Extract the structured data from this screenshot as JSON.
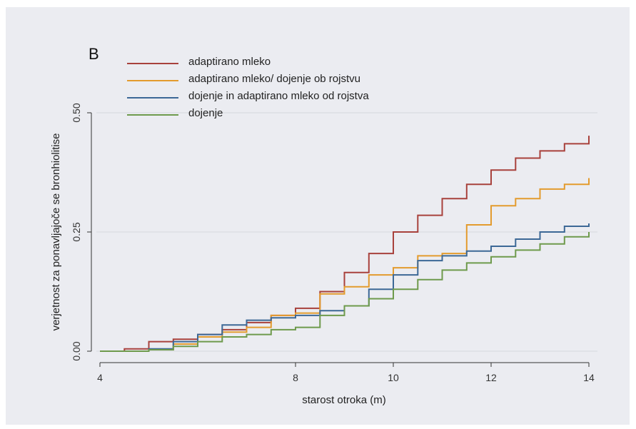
{
  "chart_data": {
    "type": "line",
    "panel_label": "B",
    "title": "",
    "xlabel": "starost otroka (m)",
    "ylabel": "verjetnost  za ponavljajoče se bronhiolitise",
    "xlim": [
      4,
      14
    ],
    "ylim": [
      0,
      0.5
    ],
    "x_ticks": [
      4,
      8,
      10,
      12,
      14
    ],
    "y_ticks": [
      0,
      0.25,
      0.5
    ],
    "y_tick_labels": [
      "0.00",
      "0.25",
      "0.50"
    ],
    "grid": "horizontal",
    "legend_position": "top-left",
    "series": [
      {
        "name": "adaptirano mleko",
        "color": "#a8413c",
        "points": [
          [
            4,
            0
          ],
          [
            4.5,
            0.005
          ],
          [
            5,
            0.02
          ],
          [
            5.5,
            0.025
          ],
          [
            6,
            0.035
          ],
          [
            6.5,
            0.045
          ],
          [
            7,
            0.06
          ],
          [
            7.5,
            0.075
          ],
          [
            8,
            0.09
          ],
          [
            8.5,
            0.125
          ],
          [
            9,
            0.165
          ],
          [
            9.5,
            0.205
          ],
          [
            10,
            0.25
          ],
          [
            10.5,
            0.285
          ],
          [
            11,
            0.32
          ],
          [
            11.5,
            0.35
          ],
          [
            12,
            0.38
          ],
          [
            12.5,
            0.405
          ],
          [
            13,
            0.42
          ],
          [
            13.5,
            0.435
          ],
          [
            14,
            0.452
          ]
        ]
      },
      {
        "name": "adaptirano mleko/ dojenje ob rojstvu",
        "color": "#e39b2e",
        "points": [
          [
            4,
            0
          ],
          [
            5,
            0.003
          ],
          [
            5.5,
            0.015
          ],
          [
            6,
            0.03
          ],
          [
            6.5,
            0.04
          ],
          [
            7,
            0.05
          ],
          [
            7.5,
            0.075
          ],
          [
            8,
            0.08
          ],
          [
            8.5,
            0.12
          ],
          [
            9,
            0.135
          ],
          [
            9.5,
            0.16
          ],
          [
            10,
            0.175
          ],
          [
            10.5,
            0.2
          ],
          [
            11,
            0.205
          ],
          [
            11.5,
            0.265
          ],
          [
            12,
            0.305
          ],
          [
            12.5,
            0.32
          ],
          [
            13,
            0.34
          ],
          [
            13.5,
            0.35
          ],
          [
            14,
            0.363
          ]
        ]
      },
      {
        "name": "dojenje in adaptirano mleko od rojstva",
        "color": "#3c6896",
        "points": [
          [
            4,
            0
          ],
          [
            5,
            0.005
          ],
          [
            5.5,
            0.02
          ],
          [
            6,
            0.035
          ],
          [
            6.5,
            0.055
          ],
          [
            7,
            0.065
          ],
          [
            7.5,
            0.07
          ],
          [
            8,
            0.075
          ],
          [
            8.5,
            0.085
          ],
          [
            9,
            0.095
          ],
          [
            9.5,
            0.13
          ],
          [
            10,
            0.16
          ],
          [
            10.5,
            0.19
          ],
          [
            11,
            0.2
          ],
          [
            11.5,
            0.21
          ],
          [
            12,
            0.22
          ],
          [
            12.5,
            0.235
          ],
          [
            13,
            0.25
          ],
          [
            13.5,
            0.262
          ],
          [
            14,
            0.268
          ]
        ]
      },
      {
        "name": "dojenje",
        "color": "#6e9a4c",
        "points": [
          [
            4,
            0
          ],
          [
            5,
            0.003
          ],
          [
            5.5,
            0.01
          ],
          [
            6,
            0.02
          ],
          [
            6.5,
            0.03
          ],
          [
            7,
            0.035
          ],
          [
            7.5,
            0.045
          ],
          [
            8,
            0.05
          ],
          [
            8.5,
            0.075
          ],
          [
            9,
            0.095
          ],
          [
            9.5,
            0.11
          ],
          [
            10,
            0.13
          ],
          [
            10.5,
            0.15
          ],
          [
            11,
            0.17
          ],
          [
            11.5,
            0.185
          ],
          [
            12,
            0.198
          ],
          [
            12.5,
            0.212
          ],
          [
            13,
            0.225
          ],
          [
            13.5,
            0.24
          ],
          [
            14,
            0.25
          ]
        ]
      }
    ]
  }
}
